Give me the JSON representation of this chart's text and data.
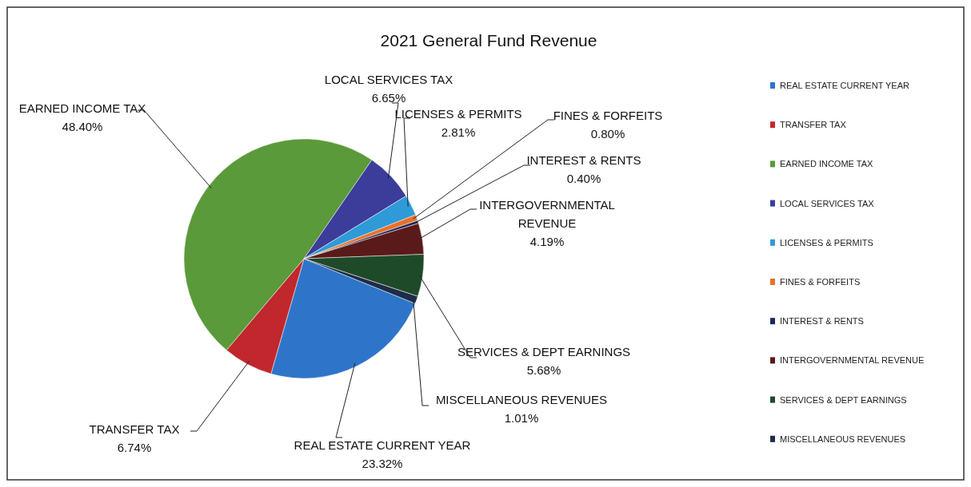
{
  "chart_data": {
    "type": "pie",
    "title": "2021 General Fund Revenue",
    "categories": [
      "REAL ESTATE CURRENT YEAR",
      "TRANSFER TAX",
      "EARNED INCOME TAX",
      "LOCAL SERVICES TAX",
      "LICENSES & PERMITS",
      "FINES & FORFEITS",
      "INTEREST & RENTS",
      "INTERGOVERNMENTAL REVENUE",
      "SERVICES & DEPT EARNINGS",
      "MISCELLANEOUS REVENUES"
    ],
    "values": [
      23.32,
      6.74,
      48.4,
      6.65,
      2.81,
      0.8,
      0.4,
      4.19,
      5.68,
      1.01
    ],
    "value_labels": [
      "23.32%",
      "6.74%",
      "48.40%",
      "6.65%",
      "2.81%",
      "0.80%",
      "0.40%",
      "4.19%",
      "5.68%",
      "1.01%"
    ],
    "colors": [
      "#2e75c9",
      "#c0282d",
      "#5a9a3a",
      "#3c3c9a",
      "#2f9ad8",
      "#e8712a",
      "#1f2a5a",
      "#5a1a1a",
      "#1f4a2a",
      "#1c2c4a"
    ],
    "legend": "right"
  }
}
